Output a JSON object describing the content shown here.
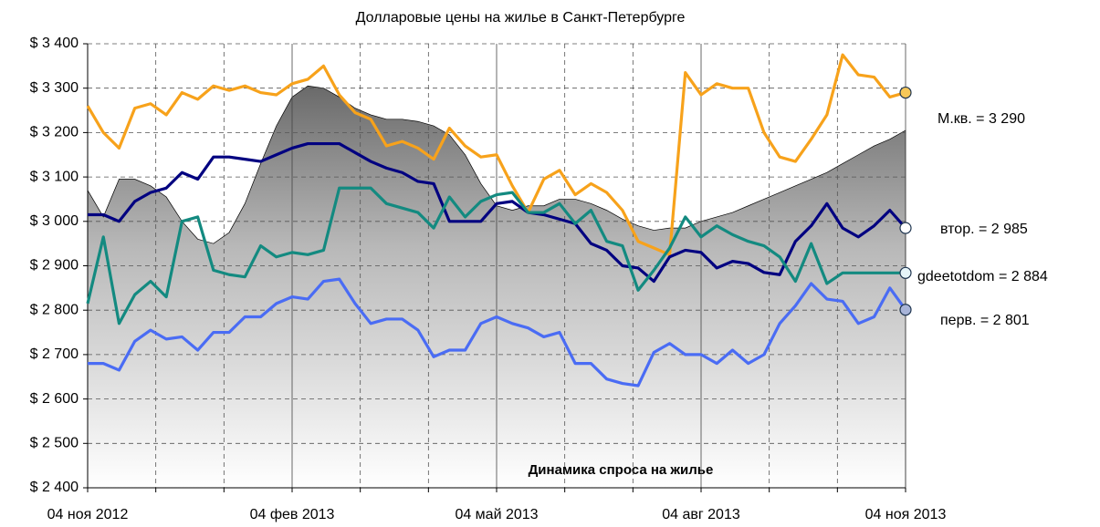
{
  "chart_data": {
    "type": "line",
    "title": "Долларовые цены на жилье в Санкт-Петербурге",
    "categories": [
      "04 ноя 2012",
      null,
      null,
      null,
      null,
      null,
      null,
      null,
      null,
      null,
      null,
      null,
      null,
      "04 фев 2013",
      null,
      null,
      null,
      null,
      null,
      null,
      null,
      null,
      null,
      null,
      null,
      null,
      "04 май 2013",
      null,
      null,
      null,
      null,
      null,
      null,
      null,
      null,
      null,
      null,
      null,
      null,
      "04 авг 2013",
      null,
      null,
      null,
      null,
      null,
      null,
      null,
      null,
      null,
      null,
      null,
      null,
      "04 ноя 2013"
    ],
    "ylim": [
      2400,
      3400
    ],
    "yticks": [
      {
        "value": 2400,
        "label": "$ 2 400"
      },
      {
        "value": 2500,
        "label": "$ 2 500"
      },
      {
        "value": 2600,
        "label": "$ 2 600"
      },
      {
        "value": 2700,
        "label": "$ 2 700"
      },
      {
        "value": 2800,
        "label": "$ 2 800"
      },
      {
        "value": 2900,
        "label": "$ 2 900"
      },
      {
        "value": 3000,
        "label": "$ 3 000"
      },
      {
        "value": 3100,
        "label": "$ 3 100"
      },
      {
        "value": 3200,
        "label": "$ 3 200"
      },
      {
        "value": 3300,
        "label": "$ 3 300"
      },
      {
        "value": 3400,
        "label": "$ 3 400"
      }
    ],
    "grid": true,
    "area": {
      "name": "Динамика спроса на жилье",
      "values": [
        3070,
        3010,
        3095,
        3095,
        3080,
        3055,
        3000,
        2960,
        2950,
        2975,
        3040,
        3130,
        3215,
        3280,
        3305,
        3300,
        3280,
        3255,
        3240,
        3230,
        3230,
        3225,
        3215,
        3195,
        3150,
        3085,
        3035,
        3025,
        3035,
        3035,
        3050,
        3050,
        3040,
        3025,
        3005,
        2990,
        2980,
        2985,
        2985,
        3000,
        3010,
        3020,
        3035,
        3050,
        3065,
        3080,
        3095,
        3110,
        3130,
        3150,
        3170,
        3185,
        3205
      ]
    },
    "series": [
      {
        "name": "М.кв. = 3 290",
        "color": "#f7a21b",
        "label_color": "#a0461e",
        "marker_fill": "#f7c85a",
        "values": [
          3260,
          3200,
          3165,
          3255,
          3265,
          3240,
          3290,
          3275,
          3305,
          3295,
          3305,
          3290,
          3285,
          3310,
          3320,
          3350,
          3285,
          3245,
          3230,
          3170,
          3180,
          3165,
          3140,
          3210,
          3170,
          3145,
          3150,
          3080,
          3020,
          3095,
          3115,
          3060,
          3085,
          3065,
          3025,
          2955,
          2940,
          2925,
          3335,
          3285,
          3310,
          3300,
          3300,
          3200,
          3145,
          3135,
          3185,
          3240,
          3375,
          3330,
          3325,
          3280,
          3290
        ]
      },
      {
        "name": "втор. = 2 985",
        "color": "#000080",
        "label_color": "#000080",
        "marker_fill": "#ffffff",
        "values": [
          3015,
          3015,
          3000,
          3045,
          3065,
          3075,
          3110,
          3095,
          3145,
          3145,
          3140,
          3135,
          3150,
          3165,
          3175,
          3175,
          3175,
          3155,
          3135,
          3120,
          3110,
          3090,
          3085,
          3000,
          3000,
          3000,
          3040,
          3045,
          3020,
          3015,
          3005,
          2995,
          2950,
          2935,
          2900,
          2895,
          2865,
          2920,
          2935,
          2930,
          2895,
          2910,
          2905,
          2885,
          2880,
          2955,
          2990,
          3040,
          2985,
          2965,
          2990,
          3025,
          2985
        ]
      },
      {
        "name": "gdeetotdom = 2 884",
        "color": "#138a80",
        "label_color": "#1f3550",
        "marker_fill": "#e6f4f8",
        "values": [
          2815,
          2965,
          2770,
          2835,
          2865,
          2830,
          3000,
          3010,
          2890,
          2880,
          2875,
          2945,
          2920,
          2930,
          2925,
          2935,
          3075,
          3075,
          3075,
          3040,
          3030,
          3020,
          2985,
          3055,
          3010,
          3045,
          3060,
          3065,
          3020,
          3020,
          3040,
          2995,
          3025,
          2955,
          2945,
          2845,
          2890,
          2940,
          3010,
          2965,
          2990,
          2970,
          2955,
          2945,
          2920,
          2865,
          2950,
          2860,
          2884,
          2884,
          2884,
          2884,
          2884
        ]
      },
      {
        "name": "перв. = 2 801",
        "color": "#4a6cf4",
        "label_color": "#4a6cf4",
        "marker_fill": "#a8b4d8",
        "values": [
          2680,
          2680,
          2665,
          2730,
          2755,
          2735,
          2740,
          2710,
          2750,
          2750,
          2785,
          2785,
          2815,
          2830,
          2825,
          2865,
          2870,
          2815,
          2770,
          2780,
          2780,
          2755,
          2695,
          2710,
          2710,
          2770,
          2785,
          2770,
          2760,
          2740,
          2750,
          2680,
          2680,
          2645,
          2635,
          2630,
          2705,
          2725,
          2700,
          2700,
          2680,
          2710,
          2680,
          2700,
          2770,
          2810,
          2860,
          2825,
          2820,
          2770,
          2785,
          2850,
          2801
        ]
      }
    ]
  }
}
